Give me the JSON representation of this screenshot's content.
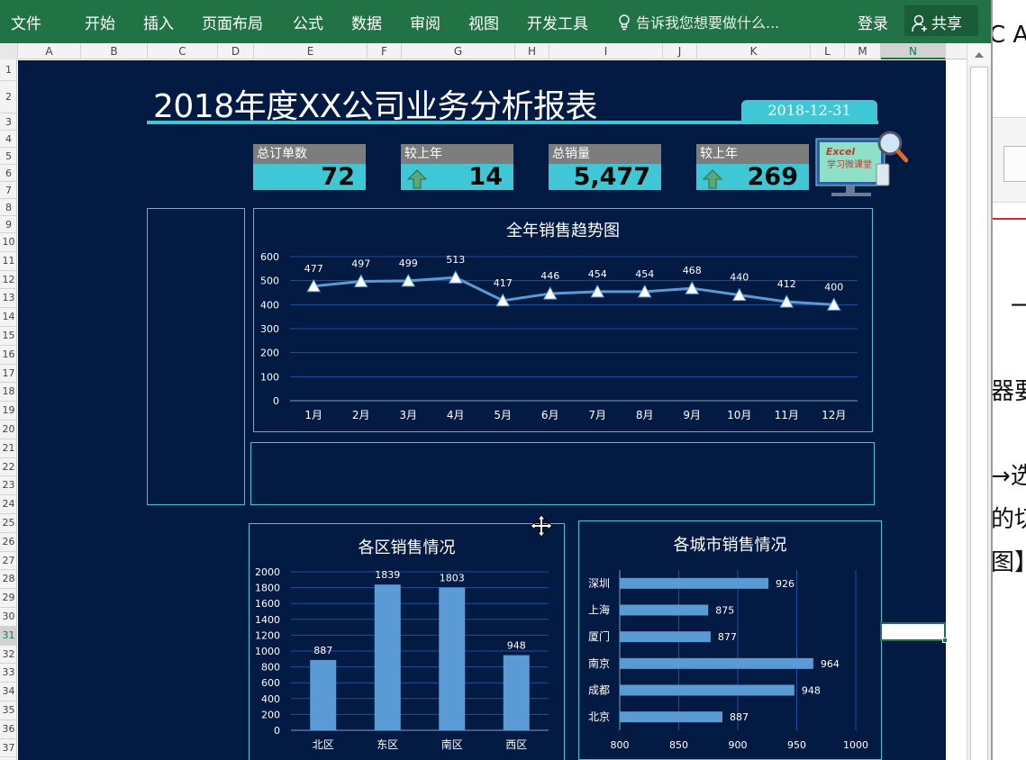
{
  "ribbon": {
    "tabs": [
      "文件",
      "开始",
      "插入",
      "页面布局",
      "公式",
      "数据",
      "审阅",
      "视图",
      "开发工具"
    ],
    "tell_me": "告诉我您想要做什么...",
    "login": "登录",
    "share": "共享"
  },
  "columns": [
    "A",
    "B",
    "C",
    "D",
    "E",
    "F",
    "G",
    "H",
    "I",
    "J",
    "K",
    "L",
    "M",
    "N"
  ],
  "selected_column": "N",
  "rows": [
    "1",
    "2",
    "3",
    "4",
    "5",
    "6",
    "7",
    "8",
    "9",
    "10",
    "11",
    "12",
    "13",
    "14",
    "15",
    "16",
    "17",
    "18",
    "19",
    "20",
    "21",
    "22",
    "23",
    "24",
    "25",
    "26",
    "27",
    "28",
    "29",
    "30",
    "31",
    "32",
    "33",
    "34",
    "35",
    "36",
    "37"
  ],
  "selected_row": "31",
  "report": {
    "title": "2018年度XX公司业务分析报表",
    "date": "2018-12-31"
  },
  "kpis": [
    {
      "label": "总订单数",
      "value": "72",
      "arrow": false
    },
    {
      "label": "较上年",
      "value": "14",
      "arrow": true
    },
    {
      "label": "总销量",
      "value": "5,477",
      "arrow": false
    },
    {
      "label": "较上年",
      "value": "269",
      "arrow": true
    }
  ],
  "logo": {
    "text1": "Excel",
    "text2": "学习微课堂"
  },
  "colors": {
    "background": "#031a42",
    "accent": "#3fc7d6",
    "series": "#5b9bd5",
    "ribbon": "#217346"
  },
  "chart_data": [
    {
      "type": "line",
      "title": "全年销售趋势图",
      "categories": [
        "1月",
        "2月",
        "3月",
        "4月",
        "5月",
        "6月",
        "7月",
        "8月",
        "9月",
        "10月",
        "11月",
        "12月"
      ],
      "values": [
        477,
        497,
        499,
        513,
        417,
        446,
        454,
        454,
        468,
        440,
        412,
        400
      ],
      "yticks": [
        0,
        100,
        200,
        300,
        400,
        500,
        600
      ],
      "ylim": [
        0,
        600
      ],
      "grid": true,
      "marker": "triangle"
    },
    {
      "type": "bar",
      "title": "各区销售情况",
      "categories": [
        "北区",
        "东区",
        "南区",
        "西区"
      ],
      "values": [
        887,
        1839,
        1803,
        948
      ],
      "yticks": [
        0,
        200,
        400,
        600,
        800,
        1000,
        1200,
        1400,
        1600,
        1800,
        2000
      ],
      "ylim": [
        0,
        2000
      ],
      "grid": true
    },
    {
      "type": "bar",
      "orientation": "horizontal",
      "title": "各城市销售情况",
      "categories": [
        "深圳",
        "上海",
        "厦门",
        "南京",
        "成都",
        "北京"
      ],
      "values": [
        926,
        875,
        877,
        964,
        948,
        887
      ],
      "xticks": [
        800,
        850,
        900,
        950,
        1000
      ],
      "xlim": [
        800,
        1000
      ],
      "grid": true
    }
  ],
  "background_window": {
    "texts": [
      "C A",
      "一",
      "器要",
      "→选",
      "的切",
      "图】"
    ]
  }
}
